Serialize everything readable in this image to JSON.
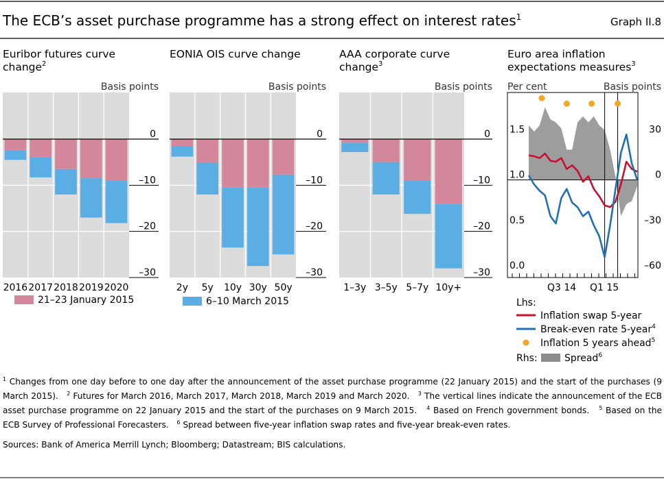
{
  "header": {
    "title": "The ECB’s asset purchase programme has a strong effect on interest rates",
    "title_sup": "1",
    "graph_id": "Graph II.8"
  },
  "colors": {
    "jan": "#d4879b",
    "mar": "#5aaee3",
    "plot_bg": "#dcdcdc",
    "swap": "#c8102e",
    "breakeven": "#1f6fb8",
    "survey": "#f5a623",
    "spread": "#8c8c8c"
  },
  "panels": [
    {
      "title_lines": [
        "Euribor futures curve",
        "change"
      ],
      "title_sup": "2",
      "unit": "Basis points",
      "legend": "21–23 January 2015"
    },
    {
      "title_lines": [
        "EONIA OIS curve change"
      ],
      "title_sup": "",
      "unit": "Basis points",
      "legend": "6–10 March 2015"
    },
    {
      "title_lines": [
        "AAA corporate curve",
        "change"
      ],
      "title_sup": "3",
      "unit": "Basis points",
      "legend": ""
    },
    {
      "title_lines": [
        "Euro area inflation",
        "expectations measures"
      ],
      "title_sup": "3",
      "unit_left": "Per cent",
      "unit_right": "Basis points"
    }
  ],
  "chart_data": [
    {
      "type": "bar",
      "title": "Euribor futures curve change",
      "ylabel": "Basis points",
      "stacked": true,
      "categories": [
        "2016",
        "2017",
        "2018",
        "2019",
        "2020"
      ],
      "ylim": [
        -30,
        0
      ],
      "yticks": [
        "0",
        "–10",
        "–20",
        "–30"
      ],
      "series": [
        {
          "name": "21–23 January 2015",
          "values": [
            -2.5,
            -4,
            -6.5,
            -8.5,
            -9
          ]
        },
        {
          "name": "6–10 March 2015",
          "values": [
            -2,
            -4.3,
            -5.5,
            -8.5,
            -9.2
          ]
        }
      ]
    },
    {
      "type": "bar",
      "title": "EONIA OIS curve change",
      "ylabel": "Basis points",
      "stacked": true,
      "categories": [
        "2y",
        "5y",
        "10y",
        "30y",
        "50y"
      ],
      "ylim": [
        -30,
        0
      ],
      "yticks": [
        "0",
        "–10",
        "–20",
        "–30"
      ],
      "series": [
        {
          "name": "21–23 January 2015",
          "values": [
            -1.5,
            -5.2,
            -10.5,
            -10.5,
            -7.7
          ]
        },
        {
          "name": "6–10 March 2015",
          "values": [
            -2.3,
            -6.8,
            -13,
            -17,
            -17.3
          ]
        }
      ]
    },
    {
      "type": "bar",
      "title": "AAA corporate curve change",
      "ylabel": "Basis points",
      "stacked": true,
      "categories": [
        "1–3y",
        "3–5y",
        "5–7y",
        "10y+"
      ],
      "ylim": [
        -30,
        0
      ],
      "yticks": [
        "0",
        "–10",
        "–20",
        "–30"
      ],
      "series": [
        {
          "name": "21–23 January 2015",
          "values": [
            -0.8,
            -5,
            -9,
            -14
          ]
        },
        {
          "name": "6–10 March 2015",
          "values": [
            -2,
            -7,
            -7.2,
            -14
          ]
        }
      ]
    },
    {
      "type": "line",
      "title": "Euro area inflation expectations measures",
      "ylabel_left": "Per cent",
      "ylabel_right": "Basis points",
      "ylim_left": [
        0,
        2
      ],
      "ylim_right": [
        -60,
        60
      ],
      "yticks_left": [
        "0.0",
        "0.5",
        "1.0",
        "1.5"
      ],
      "yticks_right": [
        "–60",
        "–30",
        "0",
        "30"
      ],
      "xticks": [
        "Q3 14",
        "Q1 15"
      ],
      "x": [
        0,
        0.05,
        0.1,
        0.15,
        0.2,
        0.25,
        0.3,
        0.35,
        0.4,
        0.45,
        0.5,
        0.55,
        0.6,
        0.65,
        0.7,
        0.75,
        0.8,
        0.85,
        0.9,
        0.95,
        1.0
      ],
      "vlines": [
        0.7,
        0.82
      ],
      "series": [
        {
          "name": "Inflation swap 5-year",
          "axis": "left",
          "values": [
            1.27,
            1.26,
            1.24,
            1.29,
            1.21,
            1.2,
            1.24,
            1.12,
            1.16,
            1.1,
            0.98,
            1.04,
            0.9,
            0.82,
            0.72,
            0.7,
            0.76,
            0.95,
            1.2,
            1.12,
            1.09
          ]
        },
        {
          "name": "Break-even rate 5-year",
          "axis": "left",
          "values": [
            1.05,
            0.95,
            0.88,
            0.83,
            0.6,
            0.52,
            0.8,
            0.9,
            0.75,
            0.7,
            0.6,
            0.65,
            0.5,
            0.38,
            0.15,
            0.5,
            0.9,
            1.3,
            1.5,
            1.18,
            1.0
          ]
        },
        {
          "name": "Spread",
          "axis": "right",
          "type": "area",
          "values": [
            36,
            32,
            36,
            48,
            40,
            38,
            34,
            20,
            20,
            38,
            42,
            38,
            42,
            36,
            33,
            20,
            2,
            -24,
            -16,
            -14,
            -4
          ]
        }
      ],
      "points": {
        "name": "Inflation 5 years ahead",
        "x": [
          0.12,
          0.35,
          0.58,
          0.82
        ],
        "values": [
          1.9,
          1.84,
          1.84,
          1.84
        ]
      },
      "legend": {
        "lhs_label": "Lhs:",
        "rhs_label": "Rhs:",
        "items": [
          {
            "label": "Inflation swap 5-year",
            "sup": ""
          },
          {
            "label": "Break-even rate 5-year",
            "sup": "4"
          },
          {
            "label": "Inflation 5 years ahead",
            "sup": "5"
          },
          {
            "label": "Spread",
            "sup": "6"
          }
        ]
      }
    }
  ],
  "footnotes": [
    {
      "n": "1",
      "text": "Changes from one day before to one day after the announcement of the asset purchase programme (22 January 2015) and the start of the purchases (9 March 2015)."
    },
    {
      "n": "2",
      "text": "Futures for March 2016, March 2017, March 2018, March 2019 and March 2020."
    },
    {
      "n": "3",
      "text": "The vertical lines indicate the announcement of the ECB asset purchase programme on 22 January 2015 and the start of the purchases on 9 March 2015."
    },
    {
      "n": "4",
      "text": "Based on French government bonds."
    },
    {
      "n": "5",
      "text": "Based on the ECB Survey of Professional Forecasters."
    },
    {
      "n": "6",
      "text": "Spread between five-year inflation swap rates and five-year break-even rates."
    }
  ],
  "sources": "Sources:  Bank of America Merrill Lynch; Bloomberg; Datastream; BIS calculations."
}
